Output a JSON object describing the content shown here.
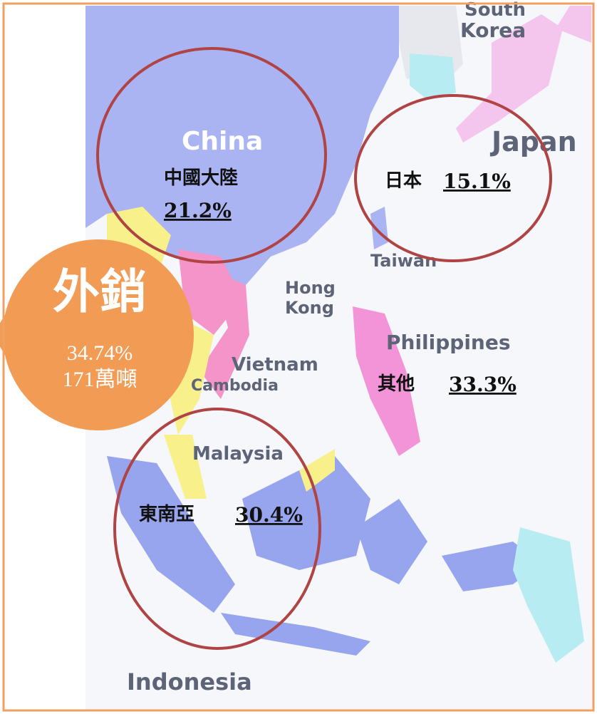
{
  "map": {
    "place_labels": {
      "south": "South",
      "korea": "Korea",
      "china": "China",
      "japan": "Japan",
      "taiwan": "Taiwan",
      "hong": "Hong",
      "kong": "Kong",
      "philippines": "Philippines",
      "vietnam": "Vietnam",
      "cambodia": "Cambodia",
      "malaysia": "Malaysia",
      "indonesia": "Indonesia"
    },
    "regions": [
      {
        "name": "中國大陸",
        "share": "21.2%"
      },
      {
        "name": "日本",
        "share": "15.1%"
      },
      {
        "name": "其他",
        "share": "33.3%"
      },
      {
        "name": "東南亞",
        "share": "30.4%"
      }
    ],
    "badge": {
      "title": "外銷",
      "percent": "34.74%",
      "volume": "171萬噸"
    }
  }
}
